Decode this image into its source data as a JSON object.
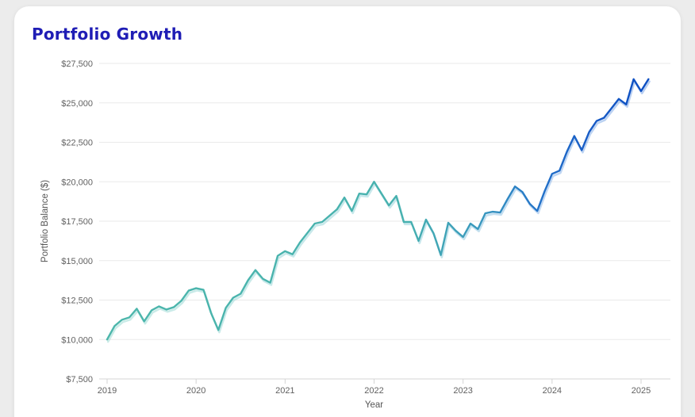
{
  "card": {
    "title": "Portfolio Growth"
  },
  "chart_data": {
    "type": "line",
    "title": "Portfolio Growth",
    "xlabel": "Year",
    "ylabel": "Portfolio Balance ($)",
    "x_ticks": [
      "2019",
      "2020",
      "2021",
      "2022",
      "2023",
      "2024",
      "2025"
    ],
    "y_ticks": [
      {
        "value": 7500,
        "label": "$7,500"
      },
      {
        "value": 10000,
        "label": "$10,000"
      },
      {
        "value": 12500,
        "label": "$12,500"
      },
      {
        "value": 15000,
        "label": "$15,000"
      },
      {
        "value": 17500,
        "label": "$17,500"
      },
      {
        "value": 20000,
        "label": "$20,000"
      },
      {
        "value": 22500,
        "label": "$22,500"
      },
      {
        "value": 25000,
        "label": "$25,000"
      },
      {
        "value": 27500,
        "label": "$27,500"
      }
    ],
    "ylim": [
      7500,
      27500
    ],
    "grid": true,
    "legend": "none",
    "series": [
      {
        "name": "Portfolio Balance",
        "cadence": "monthly",
        "start": "Jan 2019",
        "end": "Feb 2025",
        "values": [
          10000,
          10850,
          11250,
          11400,
          11950,
          11150,
          11850,
          12100,
          11900,
          12050,
          12450,
          13100,
          13250,
          13150,
          11700,
          10600,
          12000,
          12650,
          12900,
          13750,
          14400,
          13850,
          13600,
          15300,
          15600,
          15400,
          16150,
          16750,
          17350,
          17450,
          17850,
          18250,
          19000,
          18150,
          19250,
          19200,
          20000,
          19250,
          18500,
          19100,
          17450,
          17450,
          16250,
          17600,
          16750,
          15350,
          17400,
          16900,
          16500,
          17350,
          17000,
          18000,
          18100,
          18050,
          18900,
          19700,
          19350,
          18600,
          18150,
          19400,
          20500,
          20700,
          21900,
          22900,
          22000,
          23150,
          23850,
          24050,
          24650,
          25250,
          24900,
          26500,
          25750,
          26500
        ]
      }
    ],
    "style": {
      "title_color": "#1F1DB5",
      "line_color_start": "#4CB6AB",
      "line_color_end": "#0C4EC2",
      "line_glow_color": "#9FDCD4",
      "grid_color": "#EAEAEA",
      "axis_color": "#D4D4D4",
      "tick_label_color": "#616161"
    }
  }
}
